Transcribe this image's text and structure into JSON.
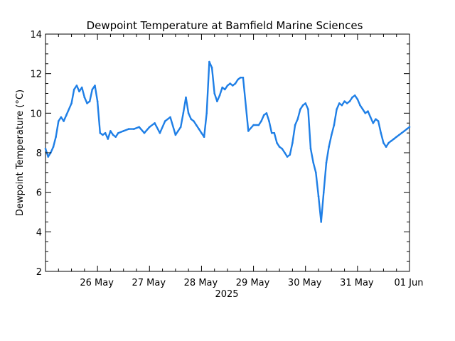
{
  "chart_data": {
    "type": "line",
    "title": "Dewpoint Temperature at Bamfield Marine Sciences",
    "ylabel": "Dewpoint Temperature (°C)",
    "xlabel": "2025",
    "ylim": [
      2,
      14
    ],
    "yticks": [
      2,
      4,
      6,
      8,
      10,
      12,
      14
    ],
    "x_range_days": [
      "25 May 00:00",
      "01 Jun 00:00"
    ],
    "xticks": [
      {
        "label": "26 May",
        "day": 1
      },
      {
        "label": "27 May",
        "day": 2
      },
      {
        "label": "28 May",
        "day": 3
      },
      {
        "label": "29 May",
        "day": 4
      },
      {
        "label": "30 May",
        "day": 5
      },
      {
        "label": "31 May",
        "day": 6
      },
      {
        "label": "01 Jun",
        "day": 7
      }
    ],
    "grid": false,
    "series": [
      {
        "color": "#1f7fe6",
        "x_days": [
          0.0,
          0.05,
          0.1,
          0.15,
          0.2,
          0.25,
          0.3,
          0.35,
          0.4,
          0.5,
          0.55,
          0.6,
          0.65,
          0.7,
          0.75,
          0.8,
          0.85,
          0.9,
          0.95,
          1.0,
          1.05,
          1.1,
          1.15,
          1.2,
          1.25,
          1.3,
          1.35,
          1.4,
          1.5,
          1.6,
          1.7,
          1.8,
          1.9,
          2.0,
          2.1,
          2.2,
          2.3,
          2.4,
          2.5,
          2.55,
          2.6,
          2.65,
          2.7,
          2.75,
          2.8,
          2.85,
          2.9,
          2.95,
          3.0,
          3.05,
          3.1,
          3.15,
          3.2,
          3.25,
          3.3,
          3.35,
          3.4,
          3.45,
          3.5,
          3.55,
          3.6,
          3.65,
          3.7,
          3.75,
          3.8,
          3.9,
          4.0,
          4.1,
          4.15,
          4.2,
          4.25,
          4.3,
          4.35,
          4.4,
          4.45,
          4.5,
          4.55,
          4.6,
          4.65,
          4.7,
          4.75,
          4.8,
          4.85,
          4.9,
          4.95,
          5.0,
          5.05,
          5.1,
          5.15,
          5.2,
          5.25,
          5.3,
          5.35,
          5.4,
          5.45,
          5.5,
          5.55,
          5.6,
          5.65,
          5.7,
          5.75,
          5.8,
          5.85,
          5.9,
          5.95,
          6.0,
          6.05,
          6.1,
          6.15,
          6.2,
          6.25,
          6.3,
          6.35,
          6.4,
          6.45,
          6.5,
          6.55,
          6.6,
          6.65,
          6.7,
          6.75,
          6.8,
          6.85,
          6.9,
          6.95,
          7.0
        ],
        "y": [
          8.2,
          7.8,
          8.0,
          8.3,
          8.8,
          9.6,
          9.8,
          9.6,
          9.9,
          10.5,
          11.2,
          11.4,
          11.1,
          11.3,
          10.8,
          10.5,
          10.6,
          11.2,
          11.4,
          10.6,
          9.0,
          8.9,
          9.0,
          8.7,
          9.1,
          8.9,
          8.8,
          9.0,
          9.1,
          9.2,
          9.2,
          9.3,
          9.0,
          9.3,
          9.5,
          9.0,
          9.6,
          9.8,
          8.9,
          9.1,
          9.3,
          10.0,
          10.8,
          10.0,
          9.7,
          9.6,
          9.4,
          9.2,
          9.0,
          8.8,
          10.0,
          12.6,
          12.3,
          11.0,
          10.6,
          10.9,
          11.3,
          11.2,
          11.4,
          11.5,
          11.4,
          11.5,
          11.7,
          11.8,
          11.8,
          9.1,
          9.4,
          9.4,
          9.6,
          9.9,
          10.0,
          9.6,
          9.0,
          9.0,
          8.5,
          8.3,
          8.2,
          8.0,
          7.8,
          7.9,
          8.5,
          9.4,
          9.7,
          10.2,
          10.4,
          10.5,
          10.2,
          8.2,
          7.5,
          7.0,
          5.8,
          4.5,
          6.0,
          7.5,
          8.3,
          8.9,
          9.4,
          10.2,
          10.5,
          10.4,
          10.6,
          10.5,
          10.6,
          10.8,
          10.9,
          10.7,
          10.4,
          10.2,
          10.0,
          10.1,
          9.8,
          9.5,
          9.7,
          9.6,
          9.0,
          8.5,
          8.3,
          8.5,
          8.6,
          8.7,
          8.8,
          8.9,
          9.0,
          9.1,
          9.2,
          9.3
        ]
      }
    ]
  }
}
